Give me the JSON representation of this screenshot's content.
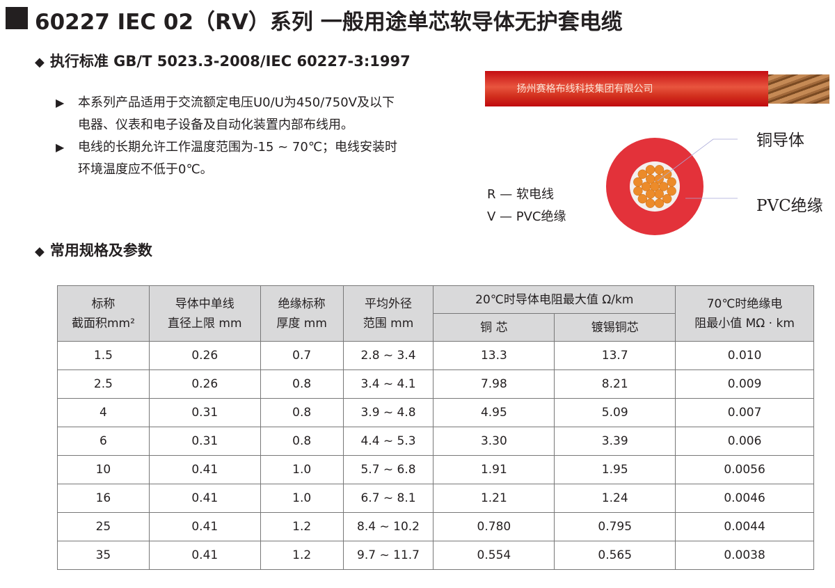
{
  "title": "60227 IEC 02（RV）系列 一般用途单芯软导体无护套电缆",
  "standard": "执行标准 GB/T 5023.3-2008/IEC 60227-3:1997",
  "bullets": [
    "本系列产品适用于交流额定电压U0/U为450/750V及以下电器、仪表和电子设备及自动化装置内部布线用。",
    "电线的长期允许工作温度范围为-15 ~ 70℃；电线安装时环境温度应不低于0℃。"
  ],
  "bullet_lines": [
    [
      "本系列产品适用于交流额定电压U0/U为450/750V及以下",
      "电器、仪表和电子设备及自动化装置内部布线用。"
    ],
    [
      "电线的长期允许工作温度范围为-15 ~ 70℃；电线安装时",
      "环境温度应不低于0℃。"
    ]
  ],
  "cable": {
    "print": "扬州赛格布线科技集团有限公司",
    "conductor_label": "铜导体",
    "insulation_label": "PVC绝缘",
    "colors": {
      "insulation": "#e3323a",
      "conductor": "#ec8b2a"
    }
  },
  "legend": [
    "R — 软电线",
    "V — PVC绝缘"
  ],
  "section2": "常用规格及参数",
  "table": {
    "headers": {
      "c1": [
        "标称",
        "截面积mm²"
      ],
      "c2": [
        "导体中单线",
        "直径上限 mm"
      ],
      "c3": [
        "绝缘标称",
        "厚度 mm"
      ],
      "c4": [
        "平均外径",
        "范围 mm"
      ],
      "group": "20℃时导体电阻最大值 Ω/km",
      "c5": "铜 芯",
      "c6": "镀锡铜芯",
      "c7": [
        "70℃时绝缘电",
        "阻最小值 MΩ · km"
      ]
    },
    "rows": [
      [
        "1.5",
        "0.26",
        "0.7",
        "2.8 ~ 3.4",
        "13.3",
        "13.7",
        "0.010"
      ],
      [
        "2.5",
        "0.26",
        "0.8",
        "3.4 ~ 4.1",
        "7.98",
        "8.21",
        "0.009"
      ],
      [
        "4",
        "0.31",
        "0.8",
        "3.9 ~ 4.8",
        "4.95",
        "5.09",
        "0.007"
      ],
      [
        "6",
        "0.31",
        "0.8",
        "4.4 ~ 5.3",
        "3.30",
        "3.39",
        "0.006"
      ],
      [
        "10",
        "0.41",
        "1.0",
        "5.7 ~ 6.8",
        "1.91",
        "1.95",
        "0.0056"
      ],
      [
        "16",
        "0.41",
        "1.0",
        "6.7 ~ 8.1",
        "1.21",
        "1.24",
        "0.0046"
      ],
      [
        "25",
        "0.41",
        "1.2",
        "8.4 ~ 10.2",
        "0.780",
        "0.795",
        "0.0044"
      ],
      [
        "35",
        "0.41",
        "1.2",
        "9.7 ~ 11.7",
        "0.554",
        "0.565",
        "0.0038"
      ]
    ]
  }
}
